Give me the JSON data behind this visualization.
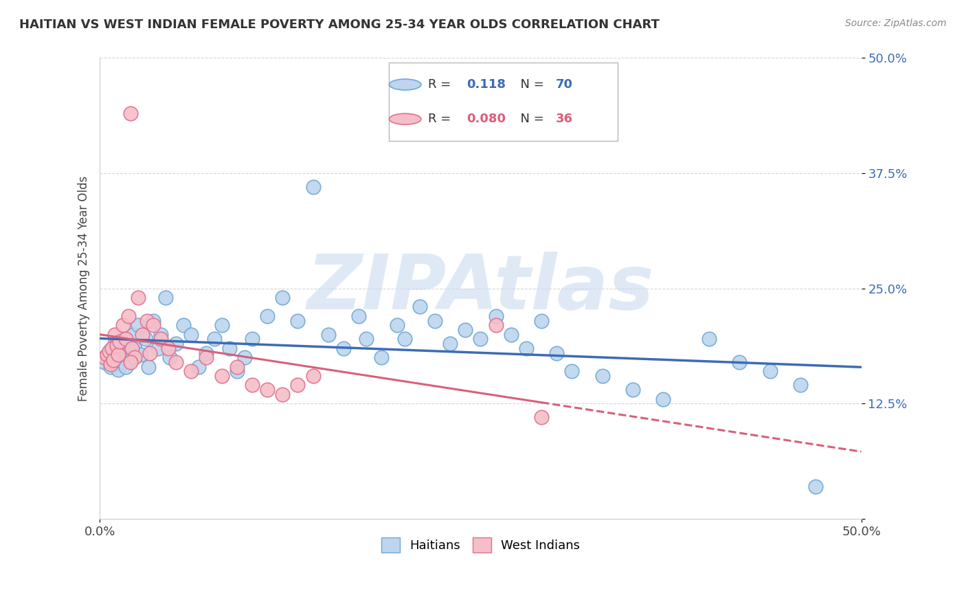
{
  "title": "HAITIAN VS WEST INDIAN FEMALE POVERTY AMONG 25-34 YEAR OLDS CORRELATION CHART",
  "source": "Source: ZipAtlas.com",
  "ylabel": "Female Poverty Among 25-34 Year Olds",
  "xlim": [
    0,
    0.5
  ],
  "ylim": [
    0,
    0.5
  ],
  "xticks": [
    0.0,
    0.5
  ],
  "yticks": [
    0.0,
    0.125,
    0.25,
    0.375,
    0.5
  ],
  "xticklabels": [
    "0.0%",
    "50.0%"
  ],
  "yticklabels": [
    "",
    "12.5%",
    "25.0%",
    "37.5%",
    "50.0%"
  ],
  "haitian_color": "#bdd5ee",
  "haitian_edge": "#6fa8d6",
  "west_indian_color": "#f5bec8",
  "west_indian_edge": "#e07090",
  "regression_blue": "#3d6bb5",
  "regression_pink": "#d95f7a",
  "watermark_text": "ZIPAtlas",
  "watermark_color": "#c5d8f0",
  "background_color": "#ffffff",
  "grid_color": "#cccccc",
  "legend_R_blue": "0.118",
  "legend_N_blue": "70",
  "legend_R_pink": "0.080",
  "legend_N_pink": "36",
  "haitian_x": [
    0.003,
    0.005,
    0.006,
    0.007,
    0.008,
    0.009,
    0.01,
    0.01,
    0.011,
    0.012,
    0.013,
    0.014,
    0.015,
    0.016,
    0.017,
    0.018,
    0.019,
    0.02,
    0.022,
    0.023,
    0.025,
    0.027,
    0.03,
    0.032,
    0.035,
    0.038,
    0.04,
    0.043,
    0.046,
    0.05,
    0.055,
    0.06,
    0.065,
    0.07,
    0.075,
    0.08,
    0.085,
    0.09,
    0.095,
    0.1,
    0.11,
    0.12,
    0.13,
    0.14,
    0.15,
    0.16,
    0.17,
    0.175,
    0.185,
    0.195,
    0.2,
    0.21,
    0.22,
    0.23,
    0.24,
    0.25,
    0.26,
    0.27,
    0.28,
    0.29,
    0.3,
    0.31,
    0.33,
    0.35,
    0.37,
    0.4,
    0.42,
    0.44,
    0.46,
    0.47
  ],
  "haitian_y": [
    0.17,
    0.175,
    0.18,
    0.165,
    0.185,
    0.172,
    0.168,
    0.19,
    0.178,
    0.162,
    0.175,
    0.182,
    0.17,
    0.195,
    0.165,
    0.18,
    0.188,
    0.172,
    0.2,
    0.185,
    0.21,
    0.178,
    0.195,
    0.165,
    0.215,
    0.185,
    0.2,
    0.24,
    0.175,
    0.19,
    0.21,
    0.2,
    0.165,
    0.18,
    0.195,
    0.21,
    0.185,
    0.16,
    0.175,
    0.195,
    0.22,
    0.24,
    0.215,
    0.36,
    0.2,
    0.185,
    0.22,
    0.195,
    0.175,
    0.21,
    0.195,
    0.23,
    0.215,
    0.19,
    0.205,
    0.195,
    0.22,
    0.2,
    0.185,
    0.215,
    0.18,
    0.16,
    0.155,
    0.14,
    0.13,
    0.195,
    0.17,
    0.16,
    0.145,
    0.035
  ],
  "west_indian_x": [
    0.003,
    0.005,
    0.006,
    0.007,
    0.008,
    0.009,
    0.01,
    0.011,
    0.012,
    0.013,
    0.015,
    0.017,
    0.019,
    0.021,
    0.023,
    0.025,
    0.028,
    0.031,
    0.033,
    0.02,
    0.035,
    0.04,
    0.045,
    0.05,
    0.06,
    0.07,
    0.08,
    0.09,
    0.1,
    0.11,
    0.12,
    0.13,
    0.14,
    0.26,
    0.29,
    0.02
  ],
  "west_indian_y": [
    0.175,
    0.178,
    0.182,
    0.168,
    0.185,
    0.172,
    0.2,
    0.188,
    0.178,
    0.192,
    0.21,
    0.195,
    0.22,
    0.185,
    0.175,
    0.24,
    0.2,
    0.215,
    0.18,
    0.17,
    0.21,
    0.195,
    0.185,
    0.17,
    0.16,
    0.175,
    0.155,
    0.165,
    0.145,
    0.14,
    0.135,
    0.145,
    0.155,
    0.21,
    0.11,
    0.44
  ]
}
